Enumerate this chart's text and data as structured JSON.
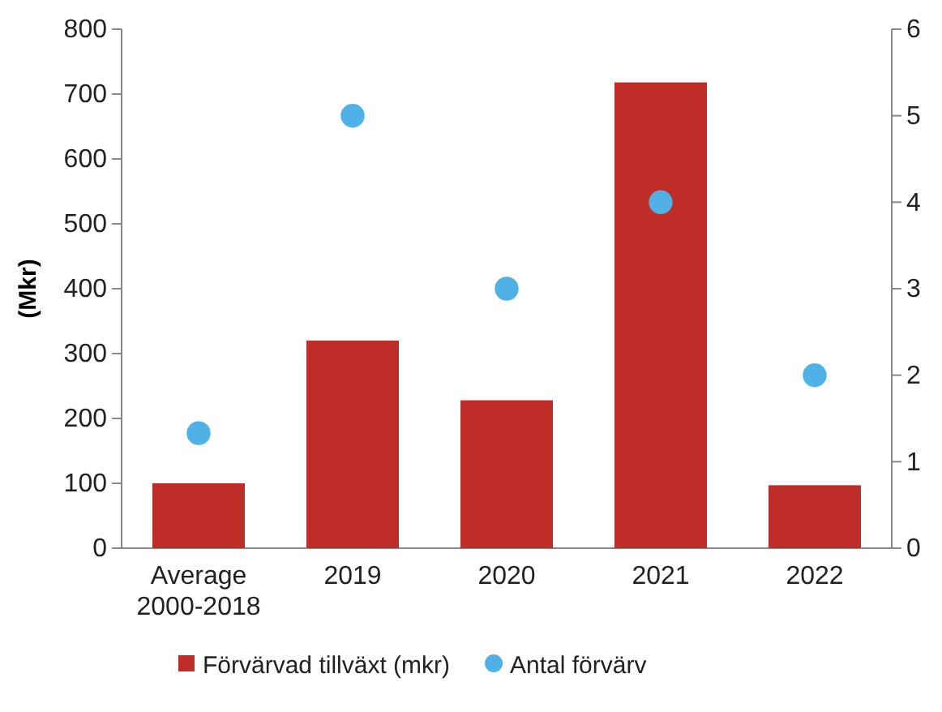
{
  "chart_data": {
    "type": "bar",
    "ylabel": "(Mkr)",
    "categories": [
      "Average\n2000-2018",
      "2019",
      "2020",
      "2021",
      "2022"
    ],
    "series": [
      {
        "name": "Förvärvad tillväxt (mkr)",
        "color": "#be2d28",
        "values": [
          100,
          320,
          228,
          718,
          97
        ]
      },
      {
        "name": "Antal förvärv",
        "type": "scatter",
        "axis": "y2",
        "color": "#4fb1e6",
        "values": [
          1.33,
          5,
          3,
          4,
          2
        ]
      }
    ],
    "ylim": [
      0,
      800
    ],
    "yticks": [
      0,
      100,
      200,
      300,
      400,
      500,
      600,
      700,
      800
    ],
    "y2lim": [
      0,
      6
    ],
    "y2ticks": [
      0,
      1,
      2,
      3,
      4,
      5,
      6
    ],
    "marker": "circle",
    "legend": "bottom",
    "grid": false
  }
}
